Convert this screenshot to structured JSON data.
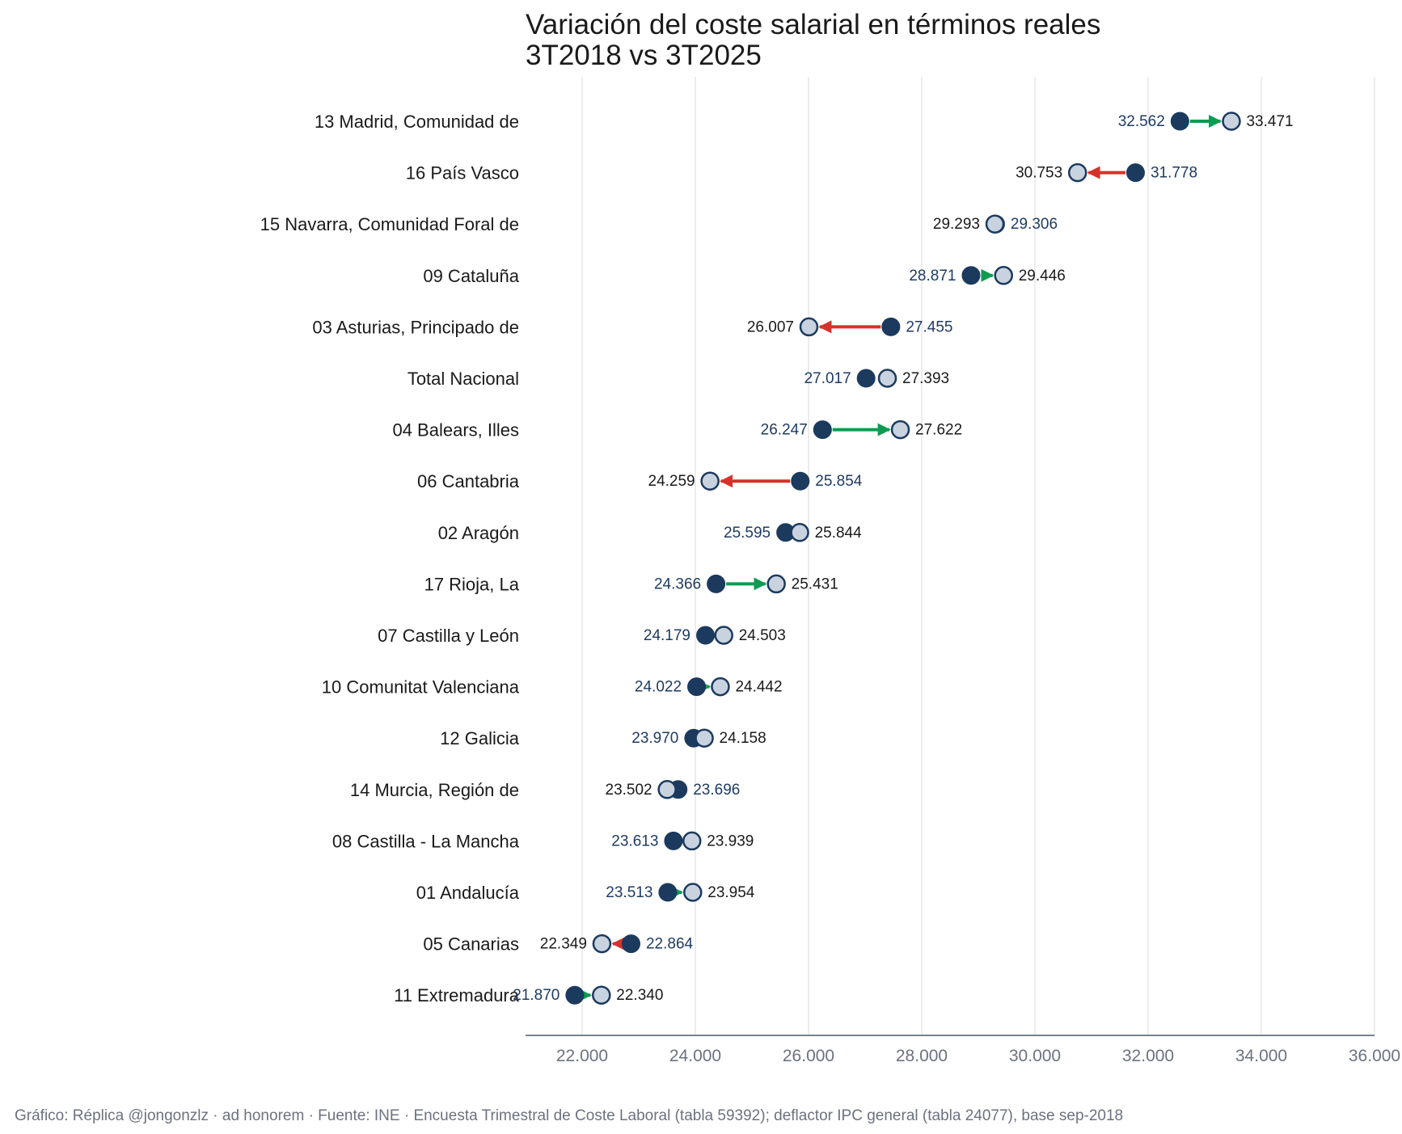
{
  "title_line1": "Variación del coste salarial en términos reales",
  "title_line2": "3T2018 vs 3T2025",
  "footer": "Gráfico: Réplica @jongonzlz · ad honorem  ·  Fuente: INE · Encuesta Trimestral de Coste Laboral (tabla 59392); deflactor IPC general (tabla 24077), base sep-2018",
  "colors": {
    "start": "#1b3a5e",
    "end": "#c9d3df",
    "increase": "#0f9a52",
    "decrease": "#d7322a",
    "grid": "#e3e3e3",
    "axis": "#4a5a6a"
  },
  "chart_data": {
    "type": "dumbbell",
    "xlim": [
      21000,
      36000
    ],
    "xticks": [
      22000,
      24000,
      26000,
      28000,
      30000,
      32000,
      34000,
      36000
    ],
    "xtick_labels": [
      "22.000",
      "24.000",
      "26.000",
      "28.000",
      "30.000",
      "32.000",
      "34.000",
      "36.000"
    ],
    "grid": true,
    "rows": [
      {
        "region": "13 Madrid, Comunidad de",
        "start": 32562,
        "end": 33471,
        "start_label": "32.562",
        "end_label": "33.471"
      },
      {
        "region": "16 País Vasco",
        "start": 31778,
        "end": 30753,
        "start_label": "31.778",
        "end_label": "30.753"
      },
      {
        "region": "15 Navarra, Comunidad Foral de",
        "start": 29306,
        "end": 29293,
        "start_label": "29.306",
        "end_label": "29.293"
      },
      {
        "region": "09 Cataluña",
        "start": 28871,
        "end": 29446,
        "start_label": "28.871",
        "end_label": "29.446"
      },
      {
        "region": "03 Asturias, Principado de",
        "start": 27455,
        "end": 26007,
        "start_label": "27.455",
        "end_label": "26.007"
      },
      {
        "region": "Total Nacional",
        "start": 27017,
        "end": 27393,
        "start_label": "27.017",
        "end_label": "27.393"
      },
      {
        "region": "04 Balears, Illes",
        "start": 26247,
        "end": 27622,
        "start_label": "26.247",
        "end_label": "27.622"
      },
      {
        "region": "06 Cantabria",
        "start": 25854,
        "end": 24259,
        "start_label": "25.854",
        "end_label": "24.259"
      },
      {
        "region": "02 Aragón",
        "start": 25595,
        "end": 25844,
        "start_label": "25.595",
        "end_label": "25.844"
      },
      {
        "region": "17 Rioja, La",
        "start": 24366,
        "end": 25431,
        "start_label": "24.366",
        "end_label": "25.431"
      },
      {
        "region": "07 Castilla y León",
        "start": 24179,
        "end": 24503,
        "start_label": "24.179",
        "end_label": "24.503"
      },
      {
        "region": "10 Comunitat Valenciana",
        "start": 24022,
        "end": 24442,
        "start_label": "24.022",
        "end_label": "24.442"
      },
      {
        "region": "12 Galicia",
        "start": 23970,
        "end": 24158,
        "start_label": "23.970",
        "end_label": "24.158"
      },
      {
        "region": "14 Murcia, Región de",
        "start": 23696,
        "end": 23502,
        "start_label": "23.696",
        "end_label": "23.502"
      },
      {
        "region": "08 Castilla - La Mancha",
        "start": 23613,
        "end": 23939,
        "start_label": "23.613",
        "end_label": "23.939"
      },
      {
        "region": "01 Andalucía",
        "start": 23513,
        "end": 23954,
        "start_label": "23.513",
        "end_label": "23.954"
      },
      {
        "region": "05 Canarias",
        "start": 22864,
        "end": 22349,
        "start_label": "22.864",
        "end_label": "22.349"
      },
      {
        "region": "11 Extremadura",
        "start": 21870,
        "end": 22340,
        "start_label": "21.870",
        "end_label": "22.340"
      }
    ]
  }
}
